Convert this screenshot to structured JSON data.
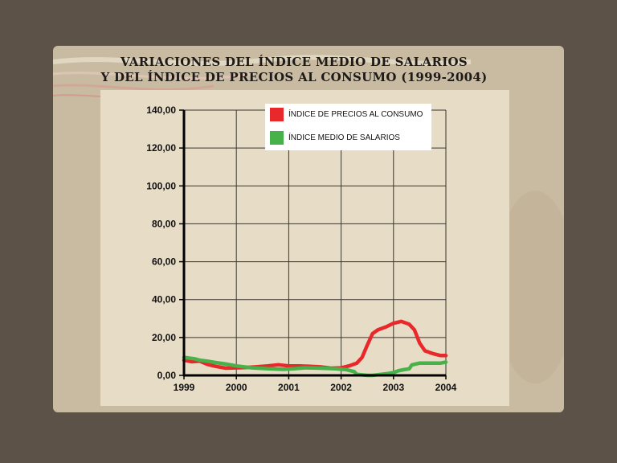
{
  "title_lines": [
    "VARIACIONES DEL ÍNDICE MEDIO DE SALARIOS",
    "Y DEL ÍNDICE DE PRECIOS AL CONSUMO  (1999-2004)"
  ],
  "chart_data": {
    "type": "line",
    "title": "VARIACIONES DEL ÍNDICE MEDIO DE SALARIOS Y DEL ÍNDICE DE PRECIOS AL CONSUMO  (1999-2004)",
    "xlabel": "",
    "ylabel": "",
    "xlim": [
      1999,
      2004
    ],
    "ylim": [
      0,
      140
    ],
    "x_ticks": [
      "1999",
      "2000",
      "2001",
      "2002",
      "2003",
      "2004"
    ],
    "y_ticks": [
      "0,00",
      "20,00",
      "40,00",
      "60,00",
      "80,00",
      "100,00",
      "120,00",
      "140,00"
    ],
    "grid": true,
    "legend_position": "top-right",
    "series": [
      {
        "name": "ÍNDICE DE PRECIOS AL CONSUMO",
        "color": "#e8282a",
        "points": [
          [
            1999.0,
            8.0
          ],
          [
            1999.15,
            7.2
          ],
          [
            1999.3,
            7.5
          ],
          [
            1999.45,
            5.8
          ],
          [
            1999.6,
            4.8
          ],
          [
            1999.8,
            3.8
          ],
          [
            2000.0,
            4.0
          ],
          [
            2000.2,
            4.2
          ],
          [
            2000.4,
            4.6
          ],
          [
            2000.6,
            5.0
          ],
          [
            2000.8,
            5.6
          ],
          [
            2001.0,
            5.0
          ],
          [
            2001.2,
            5.0
          ],
          [
            2001.4,
            4.8
          ],
          [
            2001.6,
            4.5
          ],
          [
            2001.8,
            3.8
          ],
          [
            2002.0,
            4.0
          ],
          [
            2002.15,
            5.0
          ],
          [
            2002.3,
            6.5
          ],
          [
            2002.4,
            9.5
          ],
          [
            2002.5,
            16.0
          ],
          [
            2002.6,
            22.0
          ],
          [
            2002.7,
            24.0
          ],
          [
            2002.85,
            25.5
          ],
          [
            2003.0,
            27.5
          ],
          [
            2003.15,
            28.5
          ],
          [
            2003.3,
            27.0
          ],
          [
            2003.4,
            24.0
          ],
          [
            2003.5,
            17.0
          ],
          [
            2003.6,
            13.0
          ],
          [
            2003.75,
            11.5
          ],
          [
            2003.9,
            10.5
          ],
          [
            2004.0,
            10.5
          ]
        ]
      },
      {
        "name": "ÍNDICE MEDIO DE SALARIOS",
        "color": "#47b24a",
        "points": [
          [
            1999.0,
            9.5
          ],
          [
            1999.2,
            8.8
          ],
          [
            1999.3,
            8.0
          ],
          [
            1999.45,
            7.5
          ],
          [
            1999.6,
            6.8
          ],
          [
            1999.8,
            6.0
          ],
          [
            2000.0,
            5.0
          ],
          [
            2000.3,
            4.0
          ],
          [
            2000.6,
            3.5
          ],
          [
            2000.9,
            3.2
          ],
          [
            2001.1,
            3.5
          ],
          [
            2001.3,
            4.0
          ],
          [
            2001.6,
            3.8
          ],
          [
            2001.9,
            3.5
          ],
          [
            2002.1,
            3.0
          ],
          [
            2002.25,
            2.0
          ],
          [
            2002.3,
            0.5
          ],
          [
            2002.5,
            0.0
          ],
          [
            2002.6,
            0.0
          ],
          [
            2002.75,
            0.5
          ],
          [
            2002.9,
            1.0
          ],
          [
            2003.0,
            1.5
          ],
          [
            2003.1,
            2.5
          ],
          [
            2003.2,
            3.0
          ],
          [
            2003.3,
            3.5
          ],
          [
            2003.35,
            5.5
          ],
          [
            2003.5,
            6.5
          ],
          [
            2003.7,
            6.5
          ],
          [
            2003.9,
            6.5
          ],
          [
            2004.0,
            7.0
          ]
        ]
      }
    ]
  }
}
